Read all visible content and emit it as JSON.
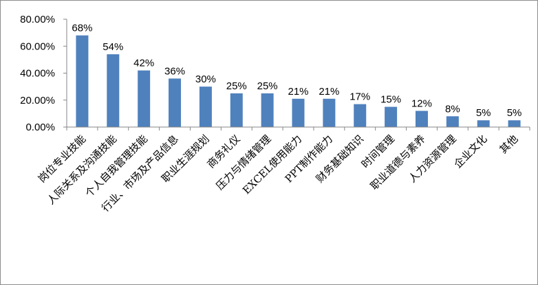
{
  "chart_data": {
    "type": "bar",
    "title": "",
    "xlabel": "",
    "ylabel": "",
    "ylim": [
      0,
      0.8
    ],
    "yticks": [
      "0.00%",
      "20.00%",
      "40.00%",
      "60.00%",
      "80.00%"
    ],
    "ytick_values": [
      0,
      0.2,
      0.4,
      0.6,
      0.8
    ],
    "grid": false,
    "legend": "none",
    "bar_color": "#4f81bd",
    "categories": [
      "岗位专业技能",
      "人际关系及沟通技能",
      "个人自我管理技能",
      "行业、市场及产品信息",
      "职业生涯规划",
      "商务礼仪",
      "压力与情绪管理",
      "EXCEL使用能力",
      "PPT制作能力",
      "财务基础知识",
      "时间管理",
      "职业道德与素养",
      "人力资源管理",
      "企业文化",
      "其他"
    ],
    "values": [
      0.68,
      0.54,
      0.42,
      0.36,
      0.3,
      0.25,
      0.25,
      0.21,
      0.21,
      0.17,
      0.15,
      0.12,
      0.08,
      0.05,
      0.05
    ],
    "data_labels": [
      "68%",
      "54%",
      "42%",
      "36%",
      "30%",
      "25%",
      "25%",
      "21%",
      "21%",
      "17%",
      "15%",
      "12%",
      "8%",
      "5%",
      "5%"
    ]
  }
}
